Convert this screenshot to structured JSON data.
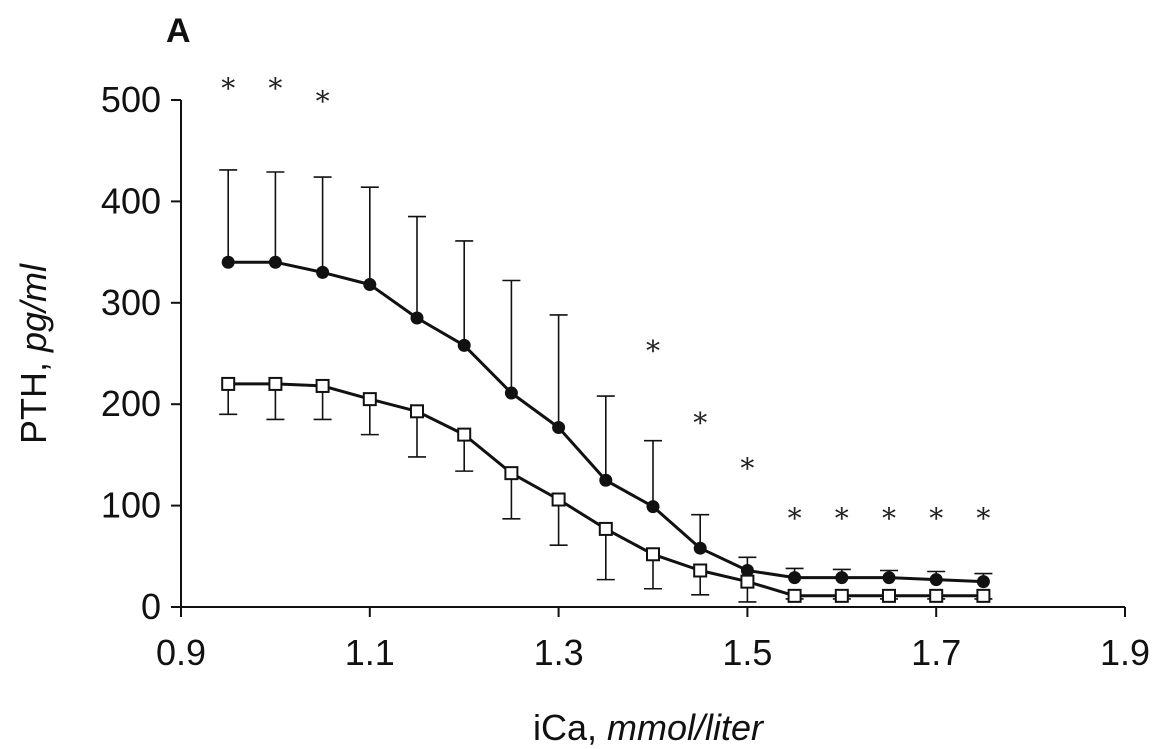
{
  "chart_data": {
    "type": "line",
    "panel_label": "A",
    "xlabel": "iCa, ",
    "xlabel_unit": "mmol/liter",
    "ylabel": "PTH, ",
    "ylabel_unit": "pg/ml",
    "xlim": [
      0.9,
      1.9
    ],
    "ylim": [
      0,
      500
    ],
    "xticks": [
      "0.9",
      "1.1",
      "1.3",
      "1.5",
      "1.7",
      "1.9"
    ],
    "yticks": [
      "0",
      "100",
      "200",
      "300",
      "400",
      "500"
    ],
    "x": [
      0.95,
      1.0,
      1.05,
      1.1,
      1.15,
      1.2,
      1.25,
      1.3,
      1.35,
      1.4,
      1.45,
      1.5,
      1.55,
      1.6,
      1.65,
      1.7,
      1.75
    ],
    "series": [
      {
        "marker": "filled-circle",
        "values": [
          340,
          340,
          330,
          318,
          285,
          258,
          211,
          177,
          125,
          99,
          58,
          36,
          29,
          29,
          29,
          27,
          25
        ],
        "error_upper": [
          431,
          429,
          424,
          414,
          385,
          361,
          322,
          288,
          208,
          164,
          91,
          49,
          38,
          37,
          36,
          35,
          33
        ]
      },
      {
        "marker": "open-square",
        "values": [
          220,
          220,
          218,
          205,
          193,
          170,
          132,
          106,
          77,
          52,
          36,
          25,
          11,
          11,
          11,
          11,
          11
        ],
        "error_lower": [
          190,
          185,
          185,
          170,
          148,
          134,
          87,
          61,
          27,
          18,
          12,
          5,
          8,
          8,
          8,
          8,
          8
        ]
      }
    ],
    "significance_marker": "*",
    "significance": [
      {
        "x": 0.95,
        "y": 512
      },
      {
        "x": 1.0,
        "y": 512
      },
      {
        "x": 1.05,
        "y": 499
      },
      {
        "x": 1.4,
        "y": 253
      },
      {
        "x": 1.45,
        "y": 182
      },
      {
        "x": 1.5,
        "y": 137
      },
      {
        "x": 1.55,
        "y": 88
      },
      {
        "x": 1.6,
        "y": 88
      },
      {
        "x": 1.65,
        "y": 88
      },
      {
        "x": 1.7,
        "y": 88
      },
      {
        "x": 1.75,
        "y": 88
      }
    ]
  }
}
